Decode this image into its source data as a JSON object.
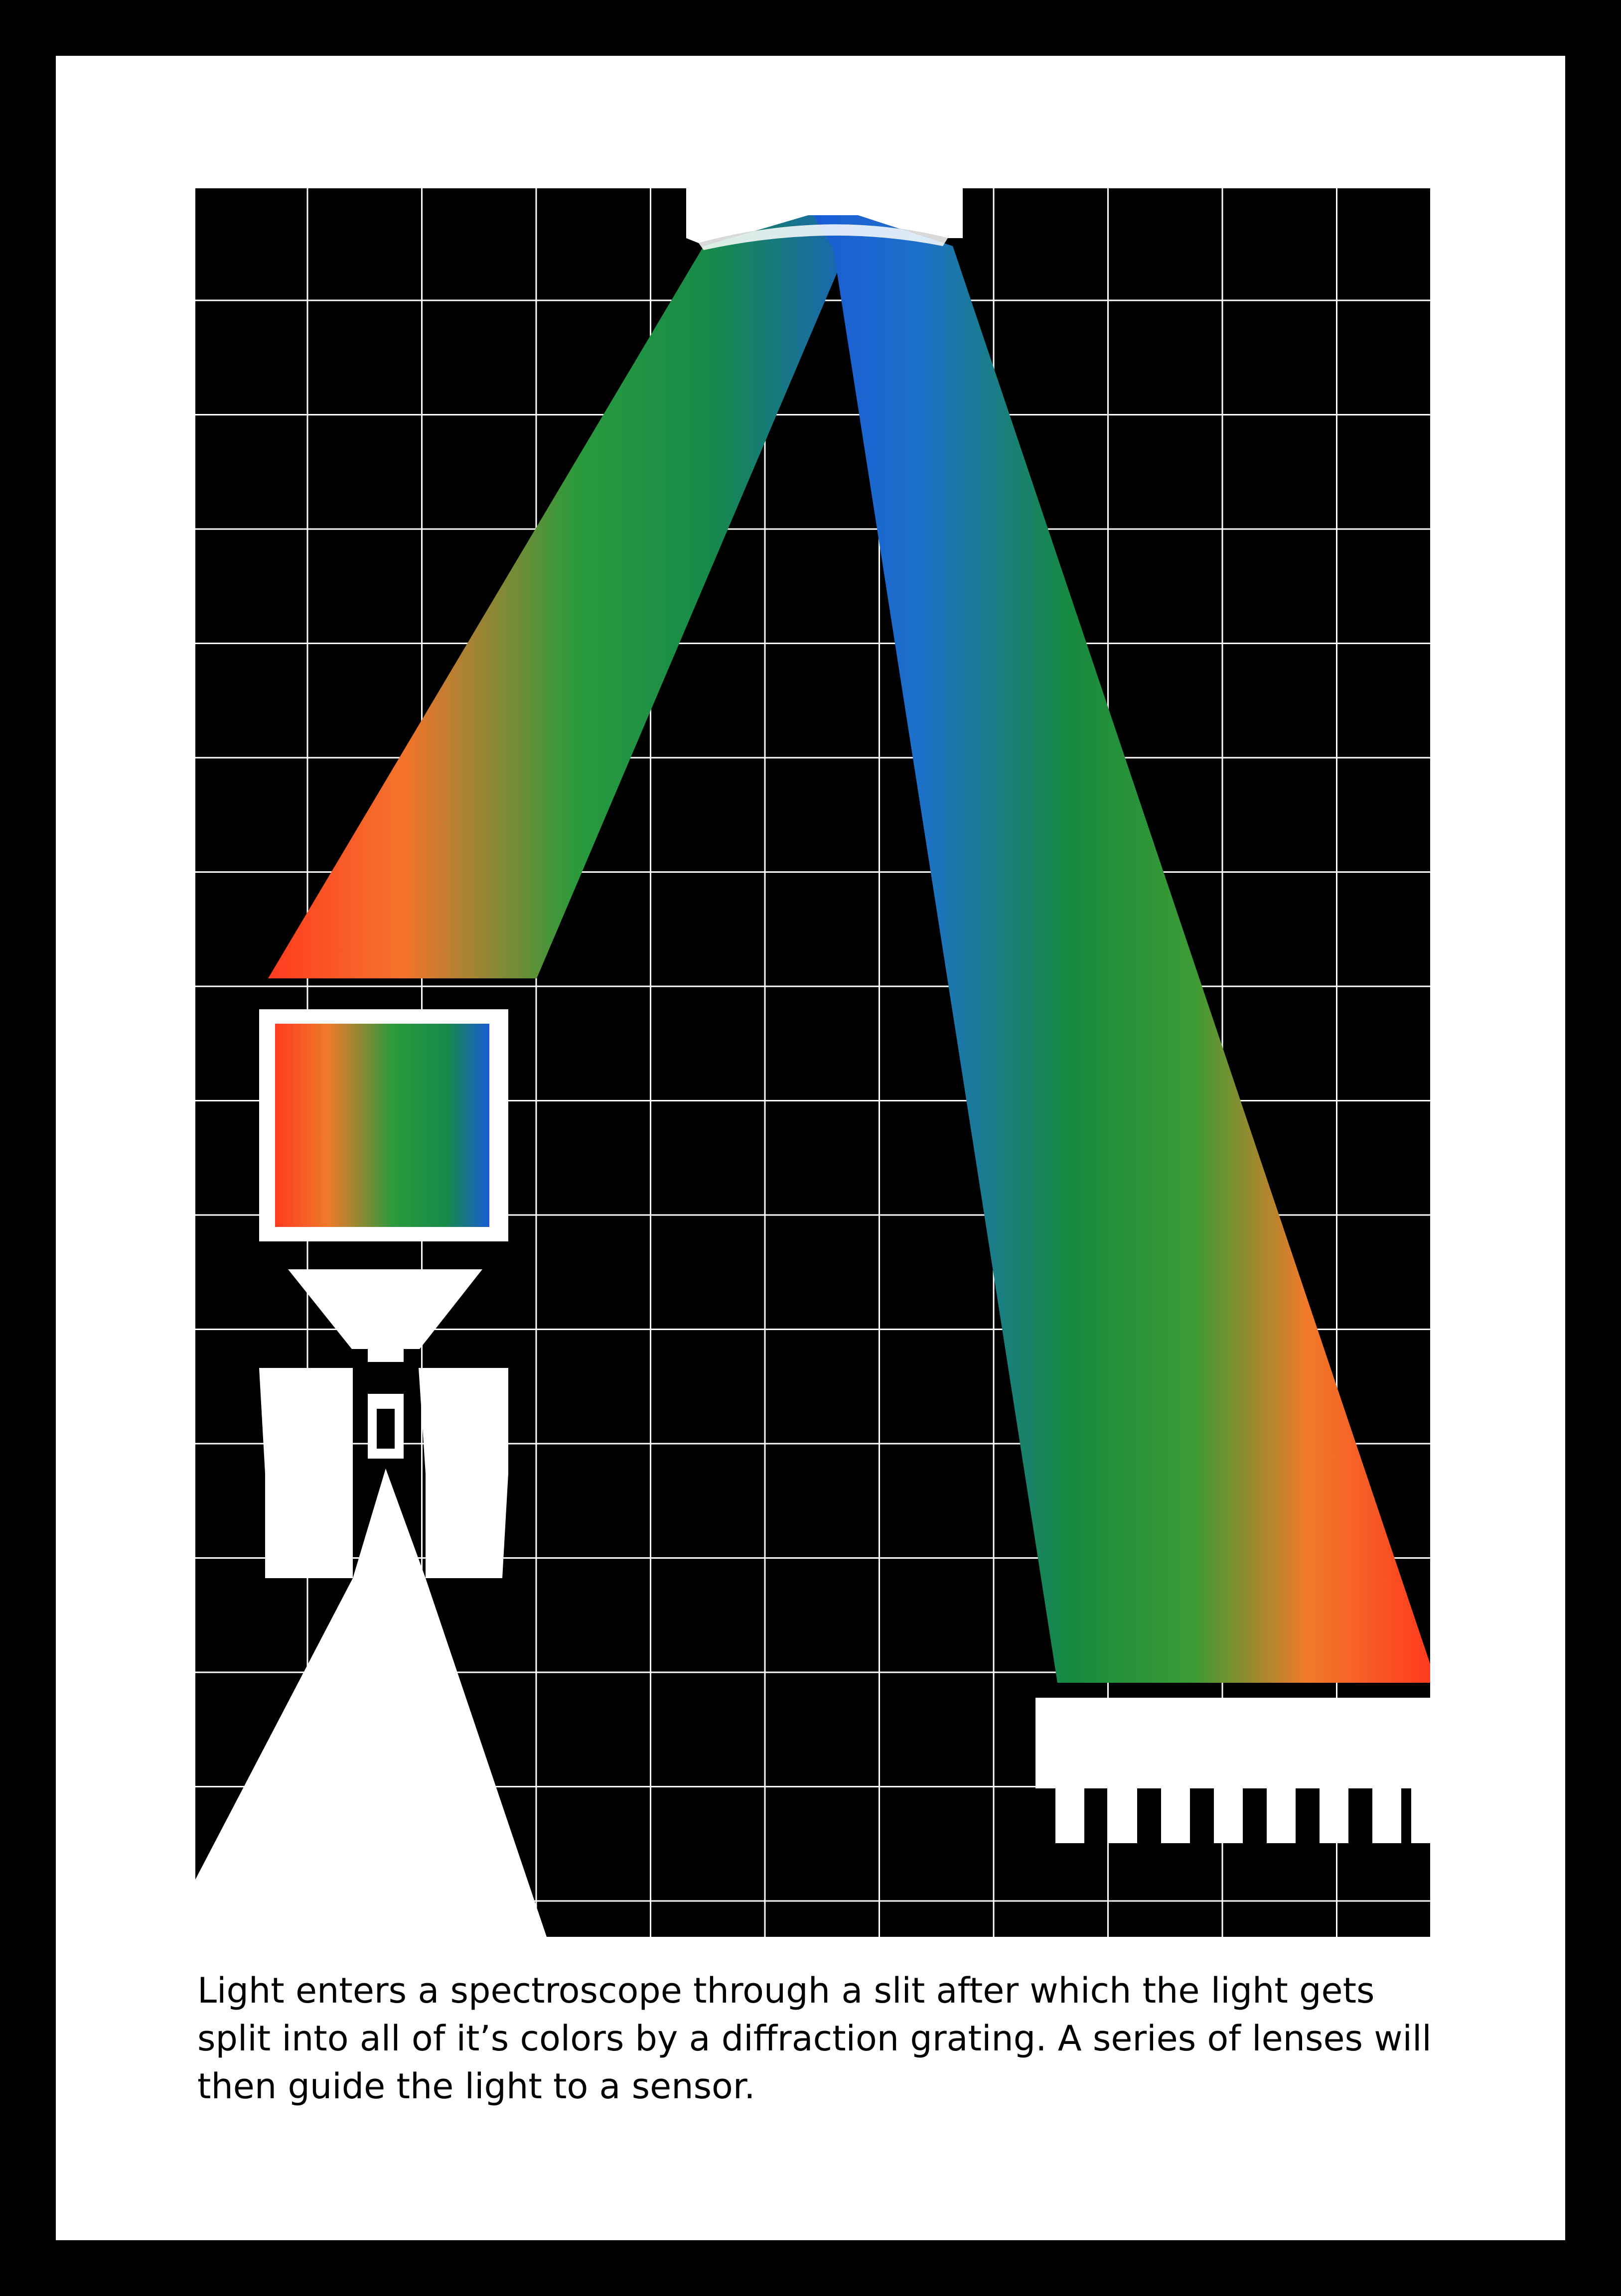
{
  "caption": {
    "text": "Light enters a spectroscope through a slit after which the light gets split into all of it’s colors by a diffraction grating. A series of lenses will then guide the light to a sensor."
  },
  "colors": {
    "frame": "#000000",
    "mat": "#ffffff",
    "background": "#000000",
    "grid": "#ffffff",
    "spectrum_red": "#ff3b1f",
    "spectrum_orange": "#f07a2a",
    "spectrum_green": "#1f9a3a",
    "spectrum_blue": "#1a5bd6"
  },
  "icons": {
    "light_source": "lamp-cone-icon",
    "slit": "slit-block-icon",
    "lens": "lens-funnel-icon",
    "grating": "diffraction-grating-icon",
    "sensor": "sensor-comb-icon"
  }
}
